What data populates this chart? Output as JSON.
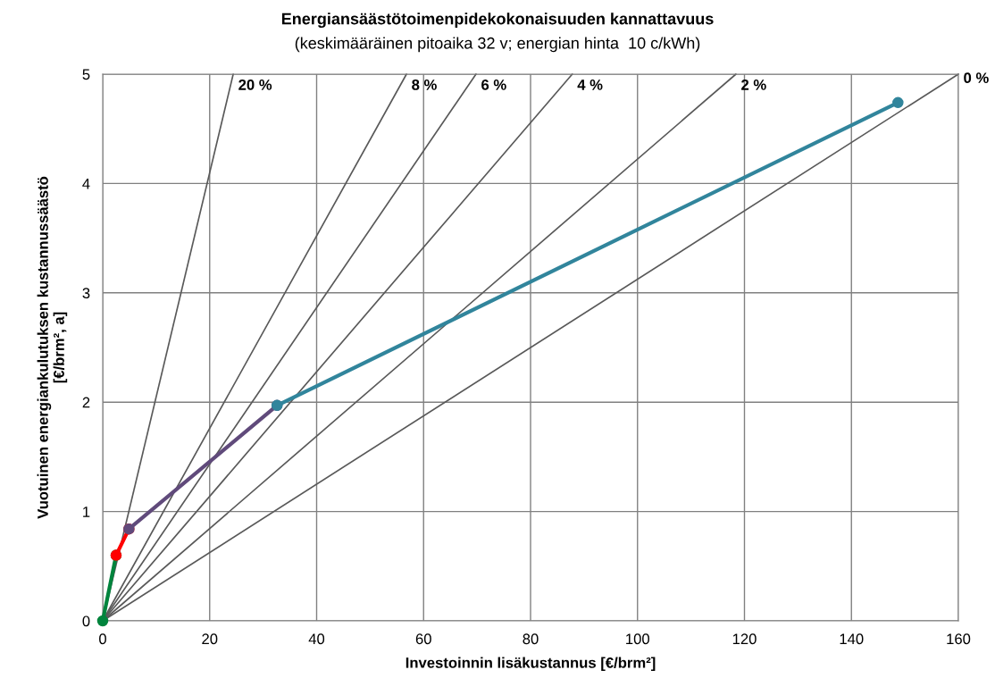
{
  "chart_data": {
    "type": "line",
    "title": "Energiansäästötoimenpidekokonaisuuden kannattavuus",
    "subtitle": "(keskimääräinen pitoaika 32 v; energian hinta  10 c/kWh)",
    "xlabel": "Investoinnin lisäkustannus [€/brm²]",
    "ylabel": "Vuotuinen energiankulutuksen kustannussäästö\n[€/brm², a]",
    "xlim": [
      0,
      160
    ],
    "ylim": [
      0,
      5
    ],
    "xticks": [
      0,
      20,
      40,
      60,
      80,
      100,
      120,
      140,
      160
    ],
    "yticks": [
      0,
      1,
      2,
      3,
      4,
      5
    ],
    "grid": true,
    "legend": false,
    "marker": "circle",
    "line_style": "solid",
    "series": [
      {
        "name": "20 %",
        "color": "#595959",
        "x": [
          0,
          24.4
        ],
        "values": [
          0,
          5
        ],
        "marker": "none"
      },
      {
        "name": "8 %",
        "color": "#595959",
        "x": [
          0,
          56.8
        ],
        "values": [
          0,
          5
        ],
        "marker": "none"
      },
      {
        "name": "6 %",
        "color": "#595959",
        "x": [
          0,
          69.8
        ],
        "values": [
          0,
          5
        ],
        "marker": "none"
      },
      {
        "name": "4 %",
        "color": "#595959",
        "x": [
          0,
          87.8
        ],
        "values": [
          0,
          5
        ],
        "marker": "none"
      },
      {
        "name": "2 %",
        "color": "#595959",
        "x": [
          0,
          118.4
        ],
        "values": [
          0,
          5
        ],
        "marker": "none"
      },
      {
        "name": "0 %",
        "color": "#595959",
        "x": [
          0,
          160
        ],
        "values": [
          0,
          5
        ],
        "marker": "none"
      },
      {
        "color": "#00843d",
        "x": [
          0,
          2.5
        ],
        "values": [
          0,
          0.6
        ]
      },
      {
        "color": "#ff0000",
        "x": [
          2.5,
          4.9
        ],
        "values": [
          0.6,
          0.84
        ]
      },
      {
        "color": "#604a7b",
        "x": [
          4.9,
          32.6
        ],
        "values": [
          0.84,
          1.97
        ]
      },
      {
        "color": "#31859c",
        "x": [
          32.6,
          148.7
        ],
        "values": [
          1.97,
          4.74
        ]
      }
    ]
  }
}
